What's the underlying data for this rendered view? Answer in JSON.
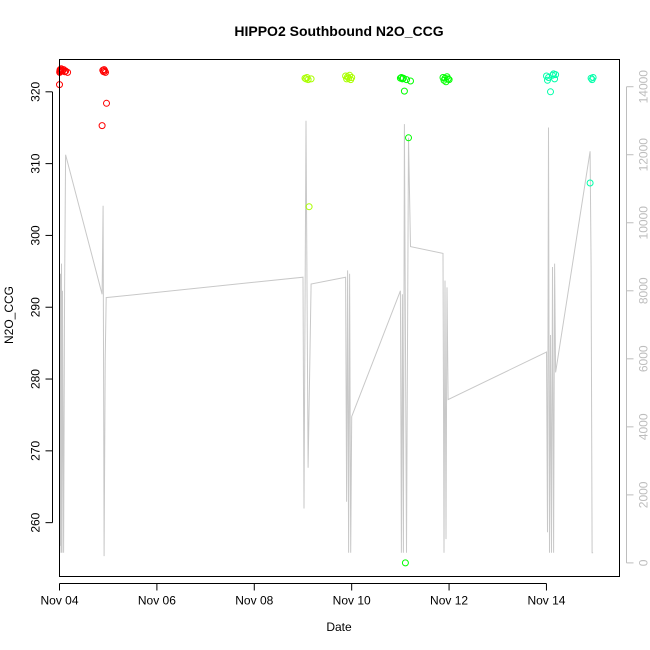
{
  "chart_data": {
    "type": "scatter",
    "title": "HIPPO2 Southbound N2O_CCG",
    "xlabel": "Date",
    "ylabel": "N2O_CCG",
    "x_axis": {
      "type": "date",
      "range": [
        "2009-11-04T00:00",
        "2009-11-15T12:00"
      ],
      "ticks": [
        {
          "value": "2009-11-04",
          "label": "Nov 04"
        },
        {
          "value": "2009-11-06",
          "label": "Nov 06"
        },
        {
          "value": "2009-11-08",
          "label": "Nov 08"
        },
        {
          "value": "2009-11-10",
          "label": "Nov 10"
        },
        {
          "value": "2009-11-12",
          "label": "Nov 12"
        },
        {
          "value": "2009-11-14",
          "label": "Nov 14"
        }
      ]
    },
    "y_axis_left": {
      "range": [
        252.5,
        324.5
      ],
      "ticks": [
        260,
        270,
        280,
        290,
        300,
        310,
        320
      ]
    },
    "y_axis_right": {
      "range": [
        -400,
        14800
      ],
      "ticks": [
        0,
        2000,
        4000,
        6000,
        8000,
        10000,
        12000,
        14000
      ],
      "color": "#bdbdbd"
    },
    "grid": false,
    "marker": "open-circle",
    "series": [
      {
        "color": "#ff0000",
        "points": [
          [
            "2009-11-04T00:00",
            321.0
          ],
          [
            "2009-11-04T00:05",
            322.7
          ],
          [
            "2009-11-04T00:10",
            322.9
          ],
          [
            "2009-11-04T00:20",
            323.1
          ],
          [
            "2009-11-04T00:30",
            322.8
          ],
          [
            "2009-11-04T00:40",
            323.0
          ],
          [
            "2009-11-04T00:50",
            323.2
          ],
          [
            "2009-11-04T01:10",
            322.9
          ],
          [
            "2009-11-04T01:30",
            323.0
          ],
          [
            "2009-11-04T02:00",
            323.1
          ],
          [
            "2009-11-04T02:30",
            322.8
          ],
          [
            "2009-11-04T03:00",
            322.9
          ],
          [
            "2009-11-04T04:00",
            322.7
          ],
          [
            "2009-11-04T21:00",
            315.3
          ],
          [
            "2009-11-04T21:20",
            323.0
          ],
          [
            "2009-11-04T21:40",
            322.8
          ],
          [
            "2009-11-04T22:00",
            323.1
          ],
          [
            "2009-11-04T22:20",
            322.9
          ],
          [
            "2009-11-04T22:40",
            322.7
          ],
          [
            "2009-11-04T23:10",
            318.4
          ]
        ]
      },
      {
        "color": "#aaff00",
        "points": [
          [
            "2009-11-09T01:00",
            321.9
          ],
          [
            "2009-11-09T01:30",
            321.8
          ],
          [
            "2009-11-09T02:00",
            322.0
          ],
          [
            "2009-11-09T02:30",
            321.7
          ],
          [
            "2009-11-09T03:00",
            304.0
          ],
          [
            "2009-11-09T04:00",
            321.8
          ],
          [
            "2009-11-09T21:00",
            322.2
          ],
          [
            "2009-11-09T21:30",
            321.8
          ],
          [
            "2009-11-09T22:00",
            322.1
          ],
          [
            "2009-11-09T22:30",
            321.9
          ],
          [
            "2009-11-09T23:00",
            322.3
          ],
          [
            "2009-11-09T23:30",
            321.7
          ],
          [
            "2009-11-10T00:00",
            322.0
          ]
        ]
      },
      {
        "color": "#00ff00",
        "points": [
          [
            "2009-11-11T00:00",
            321.9
          ],
          [
            "2009-11-11T00:30",
            322.0
          ],
          [
            "2009-11-11T01:00",
            321.8
          ],
          [
            "2009-11-11T01:30",
            321.9
          ],
          [
            "2009-11-11T02:00",
            320.1
          ],
          [
            "2009-11-11T02:30",
            254.4
          ],
          [
            "2009-11-11T03:00",
            321.7
          ],
          [
            "2009-11-11T04:00",
            313.6
          ],
          [
            "2009-11-11T05:00",
            321.5
          ],
          [
            "2009-11-11T21:00",
            322.0
          ],
          [
            "2009-11-11T21:30",
            321.6
          ],
          [
            "2009-11-11T22:00",
            321.9
          ],
          [
            "2009-11-11T22:30",
            321.4
          ],
          [
            "2009-11-11T23:00",
            322.1
          ],
          [
            "2009-11-11T23:30",
            321.8
          ],
          [
            "2009-11-12T00:00",
            321.7
          ]
        ]
      },
      {
        "color": "#00ffaa",
        "points": [
          [
            "2009-11-14T00:00",
            322.2
          ],
          [
            "2009-11-14T00:30",
            321.6
          ],
          [
            "2009-11-14T01:00",
            322.0
          ],
          [
            "2009-11-14T02:00",
            320.0
          ],
          [
            "2009-11-14T03:00",
            322.3
          ],
          [
            "2009-11-14T03:30",
            322.5
          ],
          [
            "2009-11-14T04:00",
            321.8
          ],
          [
            "2009-11-14T04:30",
            322.4
          ],
          [
            "2009-11-14T21:30",
            307.3
          ],
          [
            "2009-11-14T22:00",
            321.9
          ],
          [
            "2009-11-14T22:30",
            321.7
          ],
          [
            "2009-11-14T23:00",
            322.0
          ]
        ]
      }
    ],
    "altitude_trace": {
      "axis": "right",
      "color": "#c8c8c8",
      "points": [
        [
          "2009-11-04T00:00",
          8100
        ],
        [
          "2009-11-04T00:15",
          500
        ],
        [
          "2009-11-04T00:30",
          8500
        ],
        [
          "2009-11-04T00:45",
          300
        ],
        [
          "2009-11-04T01:00",
          8800
        ],
        [
          "2009-11-04T01:15",
          300
        ],
        [
          "2009-11-04T01:30",
          8000
        ],
        [
          "2009-11-04T02:00",
          300
        ],
        [
          "2009-11-04T02:30",
          8100
        ],
        [
          "2009-11-04T03:00",
          12000
        ],
        [
          "2009-11-04T21:00",
          7900
        ],
        [
          "2009-11-04T21:30",
          10500
        ],
        [
          "2009-11-04T22:00",
          200
        ],
        [
          "2009-11-04T22:30",
          6000
        ],
        [
          "2009-11-04T23:00",
          7800
        ],
        [
          "2009-11-09T00:00",
          8400
        ],
        [
          "2009-11-09T00:30",
          1600
        ],
        [
          "2009-11-09T01:30",
          13000
        ],
        [
          "2009-11-09T02:30",
          2800
        ],
        [
          "2009-11-09T04:00",
          8200
        ],
        [
          "2009-11-09T21:00",
          8400
        ],
        [
          "2009-11-09T21:30",
          1800
        ],
        [
          "2009-11-09T22:00",
          8600
        ],
        [
          "2009-11-09T22:30",
          300
        ],
        [
          "2009-11-09T23:00",
          8500
        ],
        [
          "2009-11-09T23:30",
          300
        ],
        [
          "2009-11-10T00:00",
          4300
        ],
        [
          "2009-11-11T00:00",
          8000
        ],
        [
          "2009-11-11T00:30",
          300
        ],
        [
          "2009-11-11T01:00",
          7900
        ],
        [
          "2009-11-11T01:30",
          300
        ],
        [
          "2009-11-11T02:00",
          12900
        ],
        [
          "2009-11-11T03:00",
          300
        ],
        [
          "2009-11-11T04:00",
          12500
        ],
        [
          "2009-11-11T05:00",
          9300
        ],
        [
          "2009-11-11T21:00",
          9100
        ],
        [
          "2009-11-11T21:30",
          300
        ],
        [
          "2009-11-11T22:00",
          8300
        ],
        [
          "2009-11-11T22:30",
          700
        ],
        [
          "2009-11-11T23:00",
          8100
        ],
        [
          "2009-11-11T23:30",
          4800
        ],
        [
          "2009-11-14T00:00",
          6200
        ],
        [
          "2009-11-14T00:30",
          900
        ],
        [
          "2009-11-14T01:00",
          12800
        ],
        [
          "2009-11-14T01:30",
          300
        ],
        [
          "2009-11-14T02:00",
          6700
        ],
        [
          "2009-11-14T02:30",
          300
        ],
        [
          "2009-11-14T03:00",
          8700
        ],
        [
          "2009-11-14T03:30",
          300
        ],
        [
          "2009-11-14T04:00",
          8800
        ],
        [
          "2009-11-14T04:30",
          5600
        ],
        [
          "2009-11-14T21:30",
          12100
        ],
        [
          "2009-11-14T22:00",
          8700
        ],
        [
          "2009-11-14T22:30",
          300
        ],
        [
          "2009-11-14T23:00",
          300
        ]
      ]
    }
  }
}
